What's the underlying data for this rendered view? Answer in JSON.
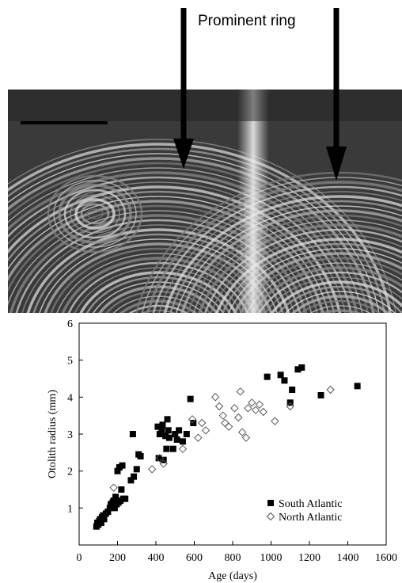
{
  "chart_data": {
    "type": "scatter",
    "annotation": "Prominent ring",
    "xlabel": "Age (days)",
    "ylabel": "Otolith radius (mm)",
    "xlim": [
      0,
      1600
    ],
    "xticks": [
      0,
      200,
      400,
      600,
      800,
      1000,
      1200,
      1400,
      1600
    ],
    "ylim": [
      0,
      6
    ],
    "yticks": [
      1,
      2,
      3,
      4,
      5,
      6
    ],
    "legend": "lower right",
    "series": [
      {
        "name": "South Atlantic",
        "color": "#000000",
        "marker": "square",
        "filled": true,
        "x": [
          90,
          95,
          100,
          105,
          110,
          115,
          120,
          125,
          130,
          140,
          150,
          160,
          165,
          170,
          175,
          180,
          185,
          190,
          195,
          200,
          205,
          210,
          215,
          220,
          225,
          230,
          240,
          270,
          280,
          285,
          300,
          310,
          320,
          410,
          415,
          420,
          430,
          435,
          440,
          450,
          455,
          460,
          465,
          470,
          490,
          500,
          510,
          520,
          540,
          560,
          580,
          595,
          980,
          1050,
          1070,
          1100,
          1110,
          1140,
          1160,
          1260,
          1450
        ],
        "values": [
          0.5,
          0.6,
          0.55,
          0.65,
          0.7,
          0.6,
          0.75,
          0.8,
          0.7,
          0.85,
          0.9,
          1.0,
          1.1,
          1.05,
          1.15,
          1.2,
          1.0,
          1.3,
          1.1,
          2.0,
          1.15,
          2.1,
          1.2,
          1.5,
          2.15,
          1.25,
          1.25,
          1.75,
          3.0,
          1.85,
          2.05,
          2.45,
          2.4,
          3.2,
          2.35,
          3.0,
          3.1,
          3.25,
          2.3,
          2.95,
          2.6,
          3.4,
          3.1,
          2.9,
          2.6,
          3.0,
          2.85,
          3.1,
          2.8,
          3.0,
          3.95,
          3.3,
          4.55,
          4.6,
          4.45,
          3.85,
          4.2,
          4.75,
          4.8,
          4.05,
          4.3
        ]
      },
      {
        "name": "North Atlantic",
        "color": "#555555",
        "marker": "diamond",
        "filled": false,
        "x": [
          180,
          380,
          420,
          440,
          540,
          590,
          620,
          640,
          660,
          710,
          730,
          750,
          760,
          780,
          810,
          830,
          840,
          850,
          870,
          880,
          900,
          920,
          940,
          960,
          1020,
          1100,
          1310
        ],
        "values": [
          1.55,
          2.05,
          2.35,
          2.2,
          2.6,
          3.4,
          2.9,
          3.3,
          3.1,
          4.0,
          3.75,
          3.5,
          3.3,
          3.2,
          3.7,
          3.45,
          4.15,
          3.05,
          2.9,
          3.7,
          3.85,
          3.65,
          3.8,
          3.6,
          3.35,
          3.75,
          4.2
        ]
      }
    ]
  }
}
